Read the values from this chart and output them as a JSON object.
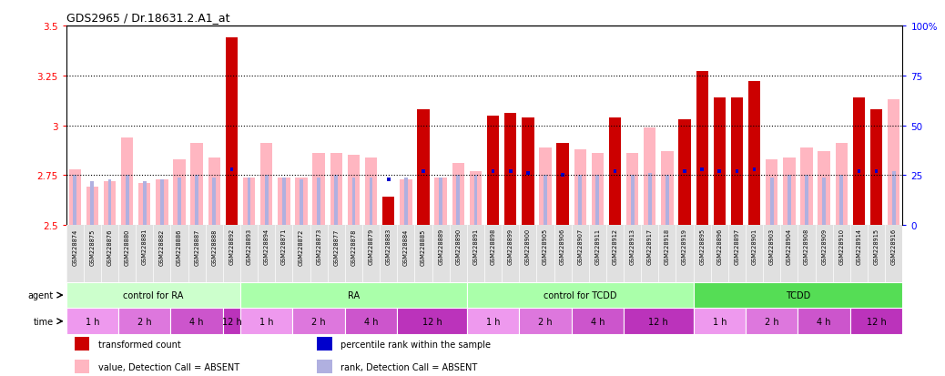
{
  "title": "GDS2965 / Dr.18631.2.A1_at",
  "samples": [
    "GSM228874",
    "GSM228875",
    "GSM228876",
    "GSM228880",
    "GSM228881",
    "GSM228882",
    "GSM228886",
    "GSM228887",
    "GSM228888",
    "GSM228892",
    "GSM228893",
    "GSM228894",
    "GSM228871",
    "GSM228872",
    "GSM228873",
    "GSM228877",
    "GSM228878",
    "GSM228879",
    "GSM228883",
    "GSM228884",
    "GSM228885",
    "GSM228889",
    "GSM228890",
    "GSM228891",
    "GSM228898",
    "GSM228899",
    "GSM228900",
    "GSM228905",
    "GSM228906",
    "GSM228907",
    "GSM228911",
    "GSM228912",
    "GSM228913",
    "GSM228917",
    "GSM228918",
    "GSM228919",
    "GSM228895",
    "GSM228896",
    "GSM228897",
    "GSM228901",
    "GSM228903",
    "GSM228904",
    "GSM228908",
    "GSM228909",
    "GSM228910",
    "GSM228914",
    "GSM228915",
    "GSM228916"
  ],
  "transformed_count": [
    2.78,
    2.69,
    2.72,
    2.94,
    2.71,
    2.73,
    2.83,
    2.91,
    2.84,
    3.44,
    2.74,
    2.91,
    2.74,
    2.74,
    2.86,
    2.86,
    2.85,
    2.84,
    2.64,
    2.73,
    3.08,
    2.74,
    2.81,
    2.77,
    3.05,
    3.06,
    3.04,
    2.89,
    2.91,
    2.88,
    2.86,
    3.04,
    2.86,
    2.99,
    2.87,
    3.03,
    3.27,
    3.14,
    3.14,
    3.22,
    2.83,
    2.84,
    2.89,
    2.87,
    2.91,
    3.14,
    3.08,
    3.13
  ],
  "percentile_rank": [
    25,
    22,
    23,
    25,
    22,
    23,
    24,
    25,
    24,
    28,
    24,
    25,
    24,
    23,
    24,
    25,
    24,
    24,
    23,
    24,
    27,
    24,
    25,
    25,
    27,
    27,
    26,
    25,
    25,
    25,
    25,
    27,
    25,
    26,
    25,
    27,
    28,
    27,
    27,
    28,
    24,
    25,
    25,
    24,
    25,
    27,
    27,
    27
  ],
  "detection_absent": [
    true,
    true,
    true,
    true,
    true,
    true,
    true,
    true,
    true,
    false,
    true,
    true,
    true,
    true,
    true,
    true,
    true,
    true,
    false,
    true,
    false,
    true,
    true,
    true,
    false,
    false,
    false,
    true,
    false,
    true,
    true,
    false,
    true,
    true,
    true,
    false,
    false,
    false,
    false,
    false,
    true,
    true,
    true,
    true,
    true,
    false,
    false,
    true
  ],
  "ylim_left": [
    2.5,
    3.5
  ],
  "ylim_right": [
    0,
    100
  ],
  "yticks_left": [
    2.5,
    2.75,
    3.0,
    3.25,
    3.5
  ],
  "ytick_labels_left": [
    "2.5",
    "2.75",
    "3",
    "3.25",
    "3.5"
  ],
  "yticks_right": [
    0,
    25,
    50,
    75,
    100
  ],
  "ytick_labels_right": [
    "0",
    "25",
    "50",
    "75",
    "100%"
  ],
  "hlines": [
    2.75,
    3.0,
    3.25
  ],
  "color_red": "#cc0000",
  "color_pink": "#ffb6c1",
  "color_blue": "#0000cc",
  "color_lightblue": "#b0b0e0",
  "agent_groups": [
    {
      "label": "control for RA",
      "start": 0,
      "end": 9,
      "color": "#ccffcc"
    },
    {
      "label": "RA",
      "start": 10,
      "end": 22,
      "color": "#aaffaa"
    },
    {
      "label": "control for TCDD",
      "start": 23,
      "end": 35,
      "color": "#aaffaa"
    },
    {
      "label": "TCDD",
      "start": 36,
      "end": 47,
      "color": "#55dd55"
    }
  ],
  "time_groups": [
    {
      "label": "1 h",
      "start": 0,
      "end": 2,
      "color": "#ee99ee"
    },
    {
      "label": "2 h",
      "start": 3,
      "end": 5,
      "color": "#dd77dd"
    },
    {
      "label": "4 h",
      "start": 6,
      "end": 8,
      "color": "#cc55cc"
    },
    {
      "label": "12 h",
      "start": 9,
      "end": 9,
      "color": "#bb33bb"
    },
    {
      "label": "1 h",
      "start": 10,
      "end": 12,
      "color": "#ee99ee"
    },
    {
      "label": "2 h",
      "start": 13,
      "end": 15,
      "color": "#dd77dd"
    },
    {
      "label": "4 h",
      "start": 16,
      "end": 18,
      "color": "#cc55cc"
    },
    {
      "label": "12 h",
      "start": 19,
      "end": 22,
      "color": "#bb33bb"
    },
    {
      "label": "1 h",
      "start": 23,
      "end": 25,
      "color": "#ee99ee"
    },
    {
      "label": "2 h",
      "start": 26,
      "end": 28,
      "color": "#dd77dd"
    },
    {
      "label": "4 h",
      "start": 29,
      "end": 31,
      "color": "#cc55cc"
    },
    {
      "label": "12 h",
      "start": 32,
      "end": 35,
      "color": "#bb33bb"
    },
    {
      "label": "1 h",
      "start": 36,
      "end": 38,
      "color": "#ee99ee"
    },
    {
      "label": "2 h",
      "start": 39,
      "end": 41,
      "color": "#dd77dd"
    },
    {
      "label": "4 h",
      "start": 42,
      "end": 44,
      "color": "#cc55cc"
    },
    {
      "label": "12 h",
      "start": 45,
      "end": 47,
      "color": "#bb33bb"
    }
  ],
  "bg_color": "#ffffff",
  "plot_bg_color": "#ffffff",
  "xtick_bg": "#e0e0e0",
  "bar_width": 0.7,
  "legend_items": [
    {
      "label": "transformed count",
      "color": "#cc0000"
    },
    {
      "label": "percentile rank within the sample",
      "color": "#0000cc"
    },
    {
      "label": "value, Detection Call = ABSENT",
      "color": "#ffb6c1"
    },
    {
      "label": "rank, Detection Call = ABSENT",
      "color": "#b0b0e0"
    }
  ]
}
